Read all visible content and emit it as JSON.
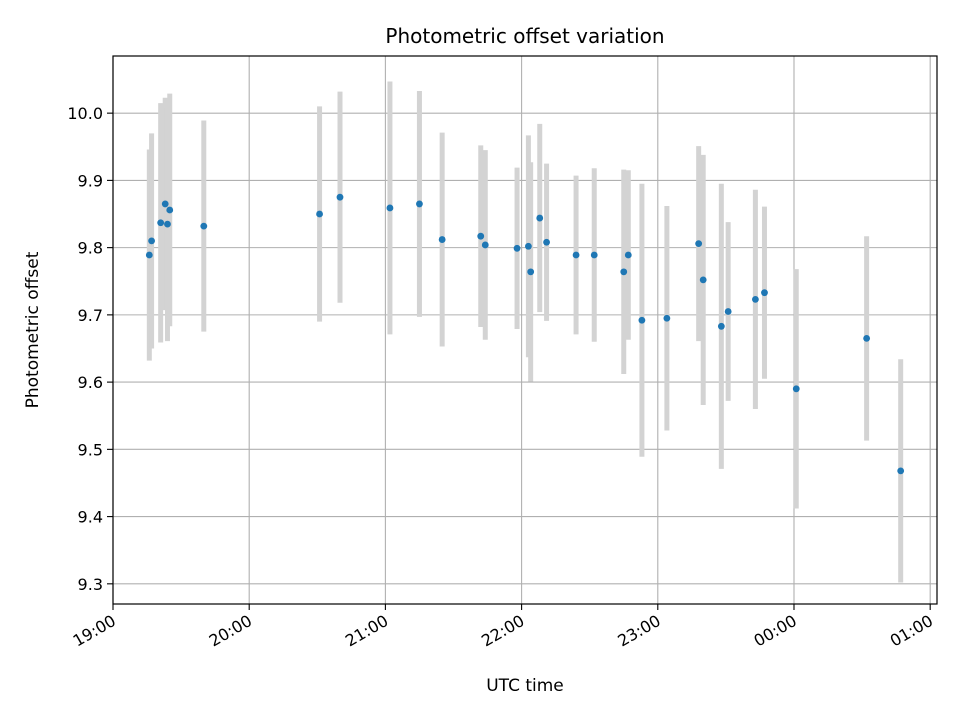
{
  "chart_data": {
    "type": "scatter",
    "title": "Photometric offset variation",
    "xlabel": "UTC time",
    "ylabel": "Photometric offset",
    "grid": true,
    "x_ticks": [
      "19:00",
      "20:00",
      "21:00",
      "22:00",
      "23:00",
      "00:00",
      "01:00"
    ],
    "y_ticks": [
      "9.3",
      "9.4",
      "9.5",
      "9.6",
      "9.7",
      "9.8",
      "9.9",
      "10.0"
    ],
    "xlim": [
      "19:00",
      "01:03"
    ],
    "ylim": [
      9.27,
      10.085
    ],
    "colors": {
      "point": "#1f77b4",
      "errorbar": "#d3d3d3",
      "grid": "#b0b0b0"
    },
    "points": [
      {
        "t": "19:16",
        "y": 9.789,
        "yerr": 0.157
      },
      {
        "t": "19:17",
        "y": 9.81,
        "yerr": 0.16
      },
      {
        "t": "19:21",
        "y": 9.837,
        "yerr": 0.178
      },
      {
        "t": "19:23",
        "y": 9.865,
        "yerr": 0.158
      },
      {
        "t": "19:24",
        "y": 9.835,
        "yerr": 0.174
      },
      {
        "t": "19:25",
        "y": 9.856,
        "yerr": 0.173
      },
      {
        "t": "19:40",
        "y": 9.832,
        "yerr": 0.157
      },
      {
        "t": "20:31",
        "y": 9.85,
        "yerr": 0.16
      },
      {
        "t": "20:40",
        "y": 9.875,
        "yerr": 0.157
      },
      {
        "t": "21:02",
        "y": 9.859,
        "yerr": 0.188
      },
      {
        "t": "21:15",
        "y": 9.865,
        "yerr": 0.168
      },
      {
        "t": "21:25",
        "y": 9.812,
        "yerr": 0.159
      },
      {
        "t": "21:42",
        "y": 9.817,
        "yerr": 0.135
      },
      {
        "t": "21:44",
        "y": 9.804,
        "yerr": 0.141
      },
      {
        "t": "21:58",
        "y": 9.799,
        "yerr": 0.12
      },
      {
        "t": "22:03",
        "y": 9.802,
        "yerr": 0.165
      },
      {
        "t": "22:04",
        "y": 9.764,
        "yerr": 0.163
      },
      {
        "t": "22:08",
        "y": 9.844,
        "yerr": 0.14
      },
      {
        "t": "22:11",
        "y": 9.808,
        "yerr": 0.117
      },
      {
        "t": "22:24",
        "y": 9.789,
        "yerr": 0.118
      },
      {
        "t": "22:32",
        "y": 9.789,
        "yerr": 0.129
      },
      {
        "t": "22:45",
        "y": 9.764,
        "yerr": 0.152
      },
      {
        "t": "22:47",
        "y": 9.789,
        "yerr": 0.126
      },
      {
        "t": "22:53",
        "y": 9.692,
        "yerr": 0.203
      },
      {
        "t": "23:04",
        "y": 9.695,
        "yerr": 0.167
      },
      {
        "t": "23:18",
        "y": 9.806,
        "yerr": 0.145
      },
      {
        "t": "23:20",
        "y": 9.752,
        "yerr": 0.186
      },
      {
        "t": "23:28",
        "y": 9.683,
        "yerr": 0.212
      },
      {
        "t": "23:31",
        "y": 9.705,
        "yerr": 0.133
      },
      {
        "t": "23:43",
        "y": 9.723,
        "yerr": 0.163
      },
      {
        "t": "23:47",
        "y": 9.733,
        "yerr": 0.128
      },
      {
        "t": "00:01",
        "y": 9.59,
        "yerr": 0.178
      },
      {
        "t": "00:32",
        "y": 9.665,
        "yerr": 0.152
      },
      {
        "t": "00:47",
        "y": 9.468,
        "yerr": 0.166
      }
    ]
  }
}
